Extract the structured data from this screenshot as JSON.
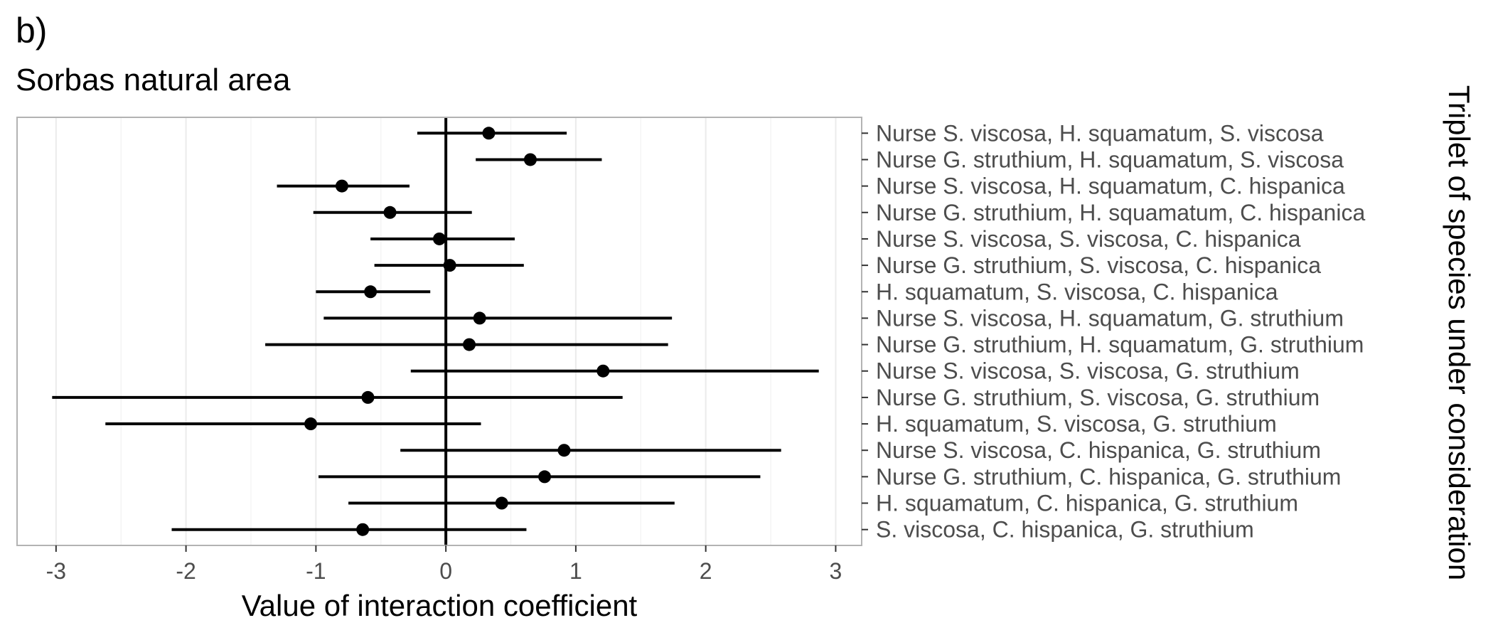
{
  "panel_label": "b)",
  "chart_data": {
    "type": "scatter",
    "subtype": "point-range",
    "title": "Sorbas natural area",
    "xlabel": "Value of interaction coefficient",
    "ylabel": "Triplet of species under consideration",
    "xlim": [
      -3.3,
      3.2
    ],
    "xticks": [
      -3,
      -2,
      -1,
      0,
      1,
      2,
      3
    ],
    "vline_at": 0,
    "grid": "vertical major and minor",
    "ylabel_position": "right",
    "points": [
      {
        "label": "Nurse S. viscosa, H. squamatum, S. viscosa",
        "estimate": 0.33,
        "lower": -0.22,
        "upper": 0.93
      },
      {
        "label": "Nurse G. struthium, H. squamatum, S. viscosa",
        "estimate": 0.65,
        "lower": 0.23,
        "upper": 1.2
      },
      {
        "label": "Nurse S. viscosa, H. squamatum, C. hispanica",
        "estimate": -0.8,
        "lower": -1.3,
        "upper": -0.28
      },
      {
        "label": "Nurse G. struthium, H. squamatum, C. hispanica",
        "estimate": -0.43,
        "lower": -1.02,
        "upper": 0.2
      },
      {
        "label": "Nurse S. viscosa, S. viscosa, C. hispanica",
        "estimate": -0.05,
        "lower": -0.58,
        "upper": 0.53
      },
      {
        "label": "Nurse G. struthium, S. viscosa, C. hispanica",
        "estimate": 0.03,
        "lower": -0.55,
        "upper": 0.6
      },
      {
        "label": "H. squamatum, S. viscosa, C. hispanica",
        "estimate": -0.58,
        "lower": -1.0,
        "upper": -0.12
      },
      {
        "label": "Nurse S. viscosa, H. squamatum, G. struthium",
        "estimate": 0.26,
        "lower": -0.94,
        "upper": 1.74
      },
      {
        "label": "Nurse G. struthium, H. squamatum, G. struthium",
        "estimate": 0.18,
        "lower": -1.39,
        "upper": 1.71
      },
      {
        "label": "Nurse S. viscosa, S. viscosa, G. struthium",
        "estimate": 1.21,
        "lower": -0.27,
        "upper": 2.87
      },
      {
        "label": "Nurse G. struthium, S. viscosa, G. struthium",
        "estimate": -0.6,
        "lower": -3.03,
        "upper": 1.36
      },
      {
        "label": "H. squamatum, S. viscosa, G. struthium",
        "estimate": -1.04,
        "lower": -2.62,
        "upper": 0.27
      },
      {
        "label": "Nurse S. viscosa, C. hispanica, G. struthium",
        "estimate": 0.91,
        "lower": -0.35,
        "upper": 2.58
      },
      {
        "label": "Nurse G. struthium, C. hispanica, G. struthium",
        "estimate": 0.76,
        "lower": -0.98,
        "upper": 2.42
      },
      {
        "label": "H. squamatum, C. hispanica, G. struthium",
        "estimate": 0.43,
        "lower": -0.75,
        "upper": 1.76
      },
      {
        "label": "S. viscosa, C. hispanica, G. struthium",
        "estimate": -0.64,
        "lower": -2.11,
        "upper": 0.62
      }
    ],
    "colors": {
      "point": "#000000",
      "panel_border": "#b3b3b3",
      "grid": "#ebebeb",
      "tick_text": "#4d4d4d"
    }
  }
}
